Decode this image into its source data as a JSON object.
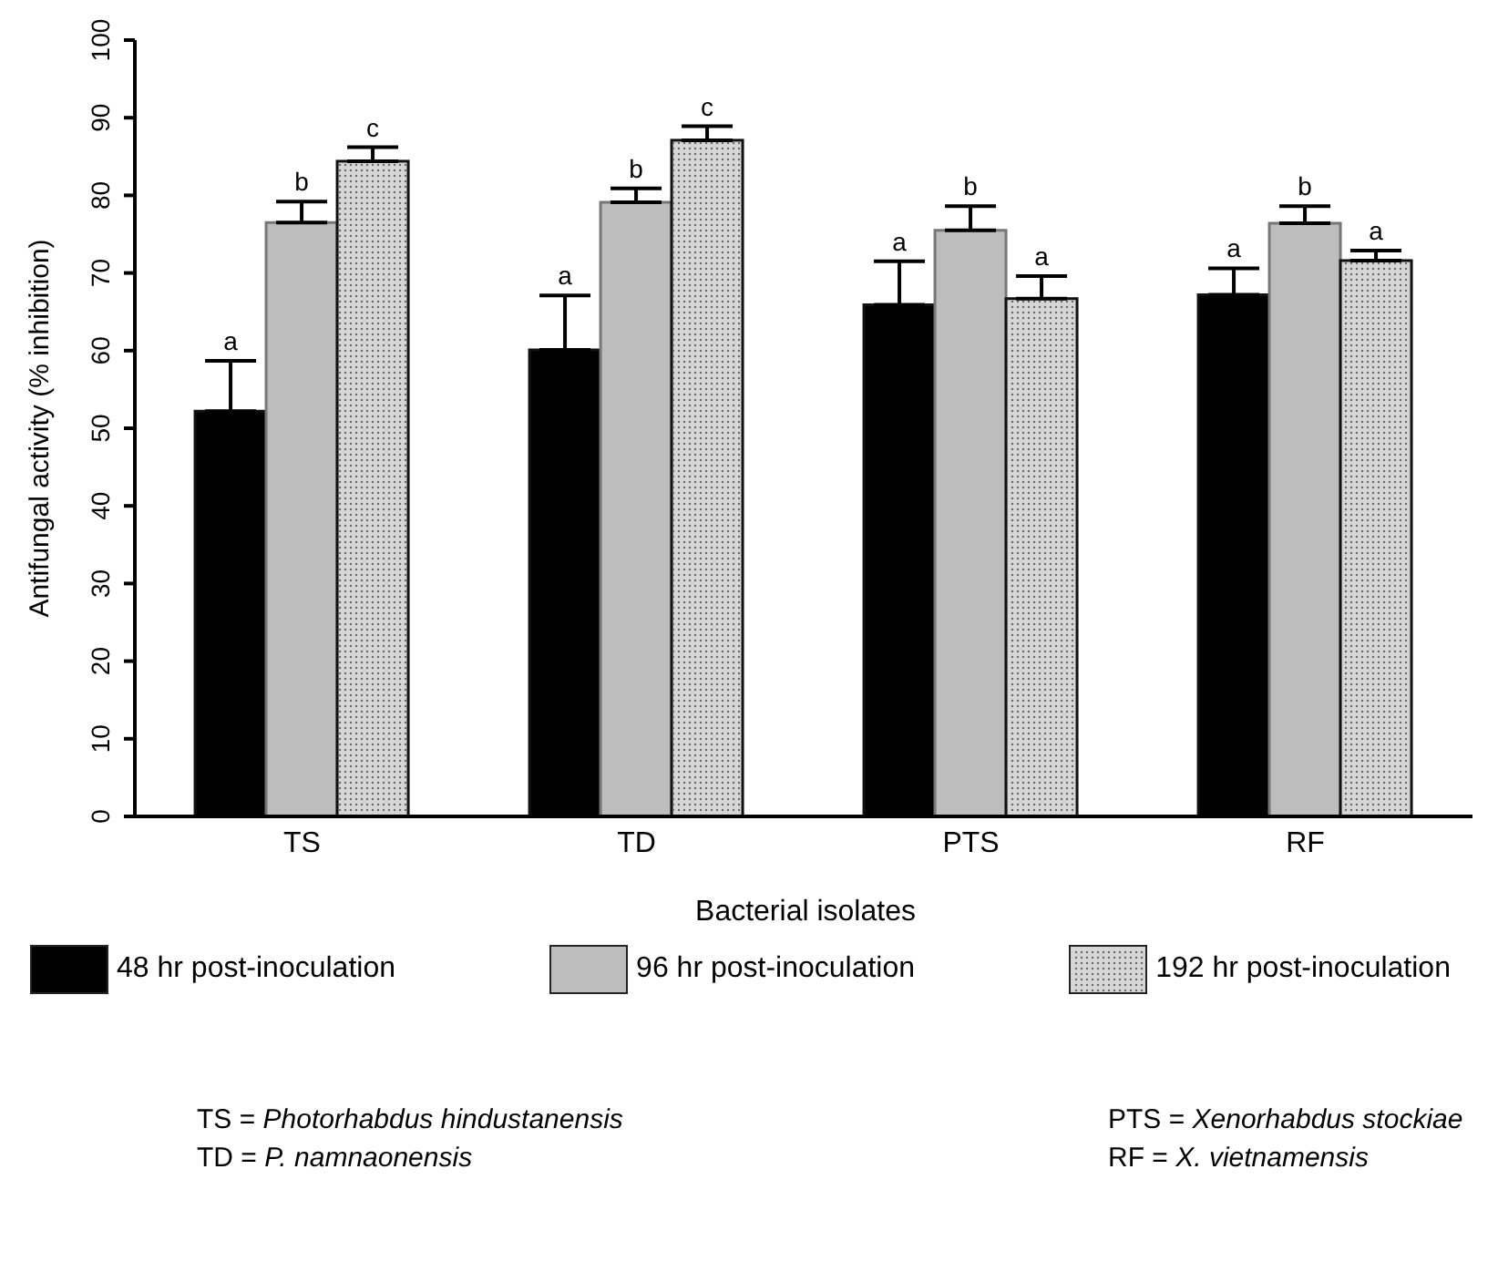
{
  "chart_data": {
    "type": "bar",
    "xlabel": "Bacterial isolates",
    "ylabel": "Antifungal activity (% inhibition)",
    "categories": [
      "TS",
      "TD",
      "PTS",
      "RF"
    ],
    "series": [
      {
        "name": "48 hr post-inoculation",
        "color": "#000000",
        "values": [
          52.2,
          60.1,
          65.9,
          67.2
        ],
        "errors": [
          [
            52.2,
            58.7
          ],
          [
            60.1,
            67.1
          ],
          [
            65.9,
            71.5
          ],
          [
            67.2,
            70.6
          ]
        ]
      },
      {
        "name": "96 hr post-inoculation",
        "color": "#bdbdbd",
        "values": [
          76.5,
          79.1,
          75.5,
          76.4
        ],
        "errors": [
          [
            76.5,
            79.2
          ],
          [
            79.1,
            80.9
          ],
          [
            75.5,
            78.6
          ],
          [
            76.4,
            78.6
          ]
        ]
      },
      {
        "name": "192 hr post-inoculation",
        "color": "#d6d6d6",
        "values": [
          84.4,
          87.1,
          66.7,
          71.6
        ],
        "errors": [
          [
            84.4,
            86.2
          ],
          [
            87.1,
            88.9
          ],
          [
            66.7,
            69.6
          ],
          [
            71.6,
            72.9
          ]
        ]
      }
    ],
    "ylim": [
      0,
      100
    ],
    "yticks": [
      0,
      10,
      20,
      30,
      40,
      50,
      60,
      70,
      80,
      90,
      100
    ],
    "grid": false,
    "legend": "bottom",
    "annotations": [
      "a",
      "b",
      "c",
      "a",
      "b",
      "c",
      "a",
      "b",
      "a",
      "a",
      "b",
      "a",
      "TS = Photorhabdus hindustanensis",
      "TD = P. namnaonensis",
      "PTS = Xenorhabdus stockiae",
      "RF = X. vietnamensis"
    ]
  }
}
